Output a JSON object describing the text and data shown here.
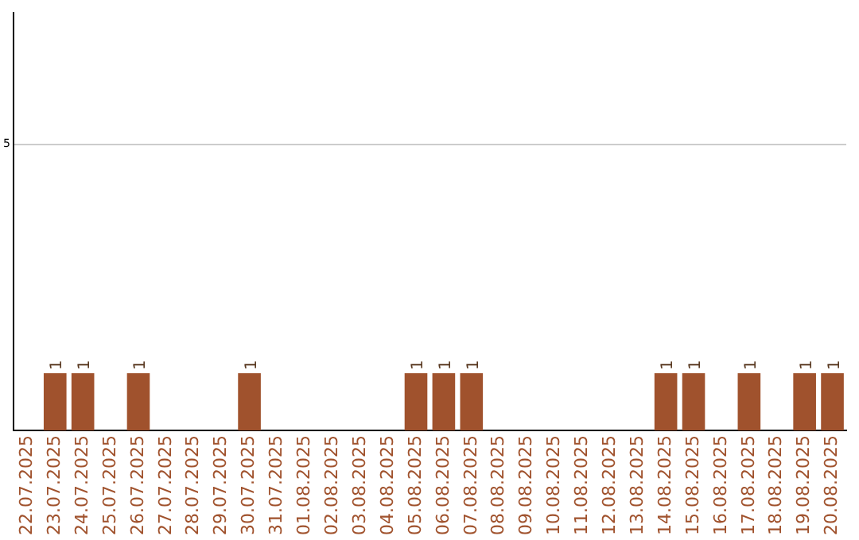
{
  "chart_data": {
    "type": "bar",
    "categories": [
      "22.07.2025",
      "23.07.2025",
      "24.07.2025",
      "25.07.2025",
      "26.07.2025",
      "27.07.2025",
      "28.07.2025",
      "29.07.2025",
      "30.07.2025",
      "31.07.2025",
      "01.08.2025",
      "02.08.2025",
      "03.08.2025",
      "04.08.2025",
      "05.08.2025",
      "06.08.2025",
      "07.08.2025",
      "08.08.2025",
      "09.08.2025",
      "10.08.2025",
      "11.08.2025",
      "12.08.2025",
      "13.08.2025",
      "14.08.2025",
      "15.08.2025",
      "16.08.2025",
      "17.08.2025",
      "18.08.2025",
      "19.08.2025",
      "20.08.2025"
    ],
    "values": [
      0,
      1,
      1,
      0,
      1,
      0,
      0,
      0,
      1,
      0,
      0,
      0,
      0,
      0,
      1,
      1,
      1,
      0,
      0,
      0,
      0,
      0,
      0,
      1,
      1,
      0,
      1,
      0,
      1,
      1
    ],
    "color": "#a0522d",
    "value_labels": [
      null,
      "1",
      "1",
      null,
      "1",
      null,
      null,
      null,
      "1",
      null,
      null,
      null,
      null,
      null,
      "1",
      "1",
      "1",
      null,
      null,
      null,
      null,
      null,
      null,
      "1",
      "1",
      null,
      "1",
      null,
      "1",
      "1"
    ],
    "ylim": [
      0,
      7.3
    ],
    "yticks": [
      5
    ],
    "grid": "y"
  }
}
